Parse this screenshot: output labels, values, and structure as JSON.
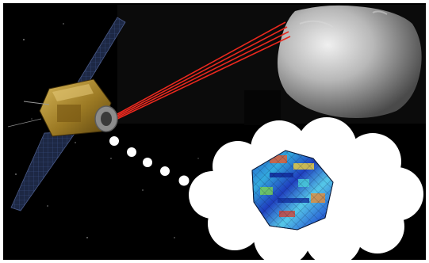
{
  "scene": {
    "background_color": "#000000",
    "frame_color": "#ffffff",
    "laser_color": "#e8281e",
    "cloud_color": "#ffffff",
    "asteroid_color": "#a9a9a9",
    "spacecraft_body_color": "#b08a2a",
    "solar_panel_color": "#1f2a44",
    "dots_count": 5,
    "objects": [
      "spacecraft-with-solar-panels",
      "laser-beams",
      "asteroid",
      "thought-bubble-dots",
      "thought-cloud",
      "colored-shape-model-mesh"
    ]
  }
}
